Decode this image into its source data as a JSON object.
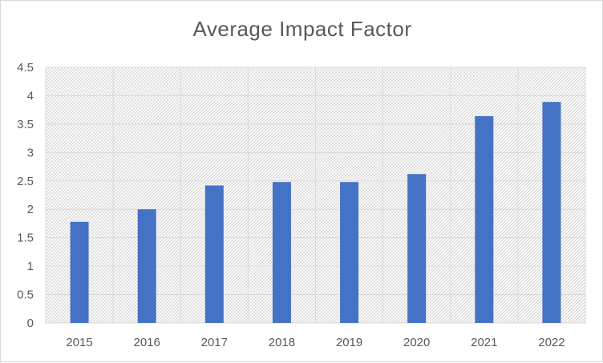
{
  "chart_data": {
    "type": "bar",
    "title": "Average Impact Factor",
    "categories": [
      "2015",
      "2016",
      "2017",
      "2018",
      "2019",
      "2020",
      "2021",
      "2022"
    ],
    "values": [
      1.78,
      2.0,
      2.42,
      2.48,
      2.48,
      2.62,
      3.64,
      3.89
    ],
    "ylim": [
      0,
      4.5
    ],
    "yticks": [
      "0",
      "0.5",
      "1",
      "1.5",
      "2",
      "2.5",
      "3",
      "3.5",
      "4",
      "4.5"
    ],
    "xlabel": "",
    "ylabel": "",
    "grid": true,
    "legend": "none",
    "bar_color": "#4472c4",
    "plot_background": "hatched"
  }
}
